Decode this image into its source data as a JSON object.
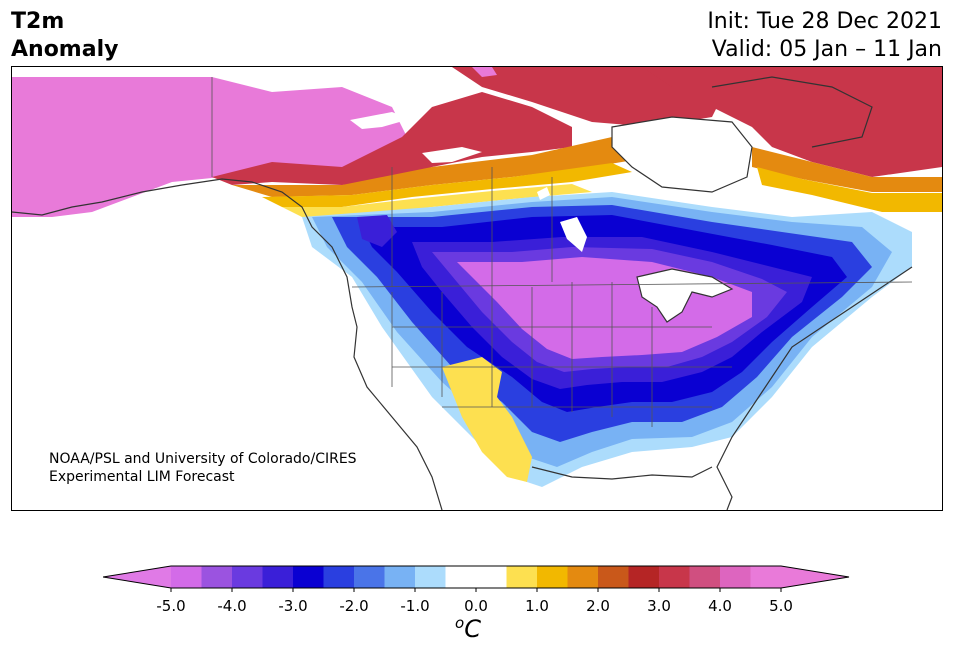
{
  "header": {
    "variable": "T2m",
    "subtitle": "Anomaly",
    "init": "Init: Tue 28 Dec 2021",
    "valid": "Valid: 05 Jan – 11 Jan"
  },
  "credit": {
    "line1": "NOAA/PSL and University of Colorado/CIRES",
    "line2": "Experimental LIM Forecast"
  },
  "colorbar": {
    "unit_prefix": "o",
    "unit_symbol": "C",
    "tick_labels": [
      "-5.0",
      "-4.0",
      "-3.0",
      "-2.0",
      "-1.0",
      "0.0",
      "1.0",
      "2.0",
      "3.0",
      "4.0",
      "5.0"
    ],
    "colors": [
      "#d36be8",
      "#9b53e0",
      "#6a3ae0",
      "#3a1fd8",
      "#0a00d2",
      "#2a3fe0",
      "#4a74e8",
      "#78b2f4",
      "#acdcfc",
      "#ffffff",
      "#ffffff",
      "#fde050",
      "#f2b800",
      "#e48a10",
      "#c9581a",
      "#b52525",
      "#c8364a",
      "#d04f80",
      "#dd65bf",
      "#e97ad9"
    ],
    "extend_low": "#e07ae6",
    "extend_high": "#e97ad9"
  },
  "map": {
    "region": "North America",
    "palette": {
      "magenta": "#e87ad9",
      "purple": "#d36be8",
      "violet": "#6a3ae0",
      "blue": "#0a00d2",
      "medblue": "#2a3fe0",
      "lightblue": "#78b2f4",
      "paleblue": "#acdcfc",
      "yellow": "#fde050",
      "gold": "#f2b800",
      "orange": "#e48a10",
      "red": "#b52525",
      "crimson": "#c8364a"
    }
  }
}
